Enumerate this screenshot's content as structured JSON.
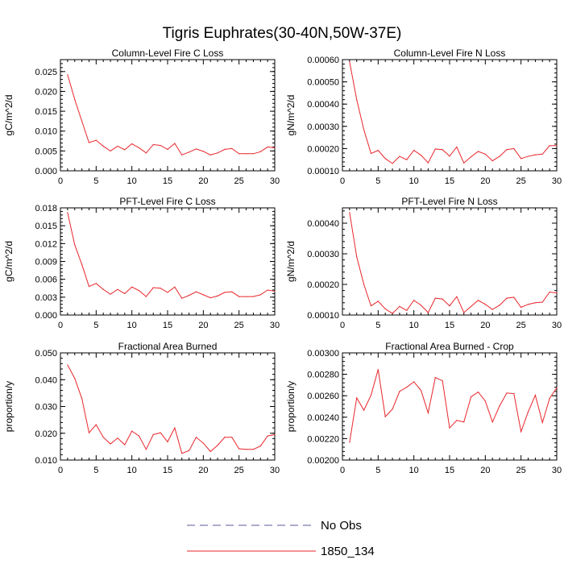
{
  "figure": {
    "title": "Tigris Euphrates(30-40N,50W-37E)",
    "line_color": "#e8262b",
    "obs_color": "#5a5a9c"
  },
  "legend": {
    "placement": "bottom-center",
    "entries": [
      {
        "label": "No Obs",
        "style": "dashed",
        "color": "#5a5a9c"
      },
      {
        "label": "1850_134",
        "style": "solid",
        "color": "#e8262b"
      }
    ]
  },
  "chart_data": [
    {
      "type": "line",
      "title": "Column-Level Fire C Loss",
      "ylabel": "gC/m^2/d",
      "xlim": [
        0,
        30
      ],
      "ylim": [
        0,
        0.028
      ],
      "xticks": [
        "0",
        "5",
        "10",
        "15",
        "20",
        "25",
        "30"
      ],
      "yticks": [
        "0.000",
        "0.005",
        "0.010",
        "0.015",
        "0.020",
        "0.025"
      ],
      "series": [
        {
          "name": "1850_134",
          "x": [
            1,
            2,
            3,
            4,
            5,
            6,
            7,
            8,
            9,
            10,
            11,
            12,
            13,
            14,
            15,
            16,
            17,
            18,
            19,
            20,
            21,
            22,
            23,
            24,
            25,
            26,
            27,
            28,
            29,
            30
          ],
          "values": [
            0.0242,
            0.018,
            0.0125,
            0.0071,
            0.0077,
            0.0062,
            0.005,
            0.0062,
            0.0053,
            0.0068,
            0.0058,
            0.0045,
            0.0066,
            0.0064,
            0.0054,
            0.0069,
            0.004,
            0.0047,
            0.0055,
            0.0049,
            0.004,
            0.0045,
            0.0054,
            0.0056,
            0.0043,
            0.0043,
            0.0043,
            0.0048,
            0.006,
            0.0058
          ]
        }
      ]
    },
    {
      "type": "line",
      "title": "Column-Level Fire N Loss",
      "ylabel": "gN/m^2/d",
      "xlim": [
        0,
        30
      ],
      "ylim": [
        0.0001,
        0.0006
      ],
      "xticks": [
        "0",
        "5",
        "10",
        "15",
        "20",
        "25",
        "30"
      ],
      "yticks": [
        "0.00010",
        "0.00020",
        "0.00030",
        "0.00040",
        "0.00050",
        "0.00060"
      ],
      "series": [
        {
          "name": "1850_134",
          "x": [
            1,
            2,
            3,
            4,
            5,
            6,
            7,
            8,
            9,
            10,
            11,
            12,
            13,
            14,
            15,
            16,
            17,
            18,
            19,
            20,
            21,
            22,
            23,
            24,
            25,
            26,
            27,
            28,
            29,
            30
          ],
          "values": [
            0.00059,
            0.00042,
            0.000285,
            0.000178,
            0.000192,
            0.000155,
            0.000133,
            0.000165,
            0.00015,
            0.000192,
            0.00017,
            0.000136,
            0.000198,
            0.000195,
            0.000166,
            0.000207,
            0.000135,
            0.000163,
            0.000187,
            0.000175,
            0.000145,
            0.000165,
            0.000195,
            0.0002,
            0.000155,
            0.000165,
            0.000172,
            0.000175,
            0.000213,
            0.000213
          ]
        }
      ]
    },
    {
      "type": "line",
      "title": "PFT-Level Fire C Loss",
      "ylabel": "gC/m^2/d",
      "xlim": [
        0,
        30
      ],
      "ylim": [
        0,
        0.018
      ],
      "xticks": [
        "0",
        "5",
        "10",
        "15",
        "20",
        "25",
        "30"
      ],
      "yticks": [
        "0.000",
        "0.003",
        "0.006",
        "0.009",
        "0.012",
        "0.015",
        "0.018"
      ],
      "series": [
        {
          "name": "1850_134",
          "x": [
            1,
            2,
            3,
            4,
            5,
            6,
            7,
            8,
            9,
            10,
            11,
            12,
            13,
            14,
            15,
            16,
            17,
            18,
            19,
            20,
            21,
            22,
            23,
            24,
            25,
            26,
            27,
            28,
            29,
            30
          ],
          "values": [
            0.0172,
            0.0118,
            0.0085,
            0.0048,
            0.0053,
            0.0043,
            0.0035,
            0.0043,
            0.0036,
            0.0047,
            0.0041,
            0.0031,
            0.0046,
            0.0045,
            0.0038,
            0.0047,
            0.0028,
            0.0033,
            0.0039,
            0.0034,
            0.0029,
            0.0032,
            0.0038,
            0.0039,
            0.0031,
            0.0031,
            0.0031,
            0.0034,
            0.0042,
            0.004
          ]
        }
      ]
    },
    {
      "type": "line",
      "title": "PFT-Level Fire N Loss",
      "ylabel": "gN/m^2/d",
      "xlim": [
        0,
        30
      ],
      "ylim": [
        0.0001,
        0.00045
      ],
      "xticks": [
        "0",
        "5",
        "10",
        "15",
        "20",
        "25",
        "30"
      ],
      "yticks": [
        "0.00010",
        "0.00020",
        "0.00030",
        "0.00040"
      ],
      "series": [
        {
          "name": "1850_134",
          "x": [
            1,
            2,
            3,
            4,
            5,
            6,
            7,
            8,
            9,
            10,
            11,
            12,
            13,
            14,
            15,
            16,
            17,
            18,
            19,
            20,
            21,
            22,
            23,
            24,
            25,
            26,
            27,
            28,
            29,
            30
          ],
          "values": [
            0.000435,
            0.00029,
            0.0002,
            0.00013,
            0.000145,
            0.00012,
            0.000105,
            0.000128,
            0.000115,
            0.000148,
            0.000132,
            0.000108,
            0.000155,
            0.000152,
            0.00013,
            0.00016,
            0.000108,
            0.000128,
            0.000148,
            0.000135,
            0.000118,
            0.000132,
            0.000155,
            0.000158,
            0.000125,
            0.000135,
            0.00014,
            0.000142,
            0.000175,
            0.000172
          ]
        }
      ]
    },
    {
      "type": "line",
      "title": "Fractional Area Burned",
      "ylabel": "proportion/y",
      "xlim": [
        0,
        30
      ],
      "ylim": [
        0.01,
        0.05
      ],
      "xticks": [
        "0",
        "5",
        "10",
        "15",
        "20",
        "25",
        "30"
      ],
      "yticks": [
        "0.010",
        "0.020",
        "0.030",
        "0.040",
        "0.050"
      ],
      "series": [
        {
          "name": "1850_134",
          "x": [
            1,
            2,
            3,
            4,
            5,
            6,
            7,
            8,
            9,
            10,
            11,
            12,
            13,
            14,
            15,
            16,
            17,
            18,
            19,
            20,
            21,
            22,
            23,
            24,
            25,
            26,
            27,
            28,
            29,
            30
          ],
          "values": [
            0.0455,
            0.0405,
            0.033,
            0.0202,
            0.0232,
            0.0185,
            0.016,
            0.0182,
            0.0157,
            0.0208,
            0.019,
            0.014,
            0.0195,
            0.0202,
            0.0168,
            0.022,
            0.0125,
            0.0135,
            0.0185,
            0.0163,
            0.0132,
            0.0155,
            0.0185,
            0.0185,
            0.0142,
            0.014,
            0.014,
            0.0152,
            0.019,
            0.0195
          ]
        }
      ]
    },
    {
      "type": "line",
      "title": "Fractional Area Burned - Crop",
      "ylabel": "proportion/y",
      "xlim": [
        0,
        30
      ],
      "ylim": [
        0.002,
        0.003
      ],
      "xticks": [
        "0",
        "5",
        "10",
        "15",
        "20",
        "25",
        "30"
      ],
      "yticks": [
        "0.00200",
        "0.00220",
        "0.00240",
        "0.00260",
        "0.00280",
        "0.00300"
      ],
      "series": [
        {
          "name": "1850_134",
          "x": [
            1,
            2,
            3,
            4,
            5,
            6,
            7,
            8,
            9,
            10,
            11,
            12,
            13,
            14,
            15,
            16,
            17,
            18,
            19,
            20,
            21,
            22,
            23,
            24,
            25,
            26,
            27,
            28,
            29,
            30
          ],
          "values": [
            0.002165,
            0.00258,
            0.002465,
            0.002605,
            0.002845,
            0.002405,
            0.002475,
            0.00264,
            0.00268,
            0.00273,
            0.00265,
            0.00244,
            0.00277,
            0.00274,
            0.0023,
            0.00237,
            0.002355,
            0.00259,
            0.002635,
            0.00255,
            0.002355,
            0.002505,
            0.002625,
            0.00262,
            0.002265,
            0.00245,
            0.002605,
            0.00235,
            0.002575,
            0.002675
          ]
        }
      ]
    }
  ]
}
